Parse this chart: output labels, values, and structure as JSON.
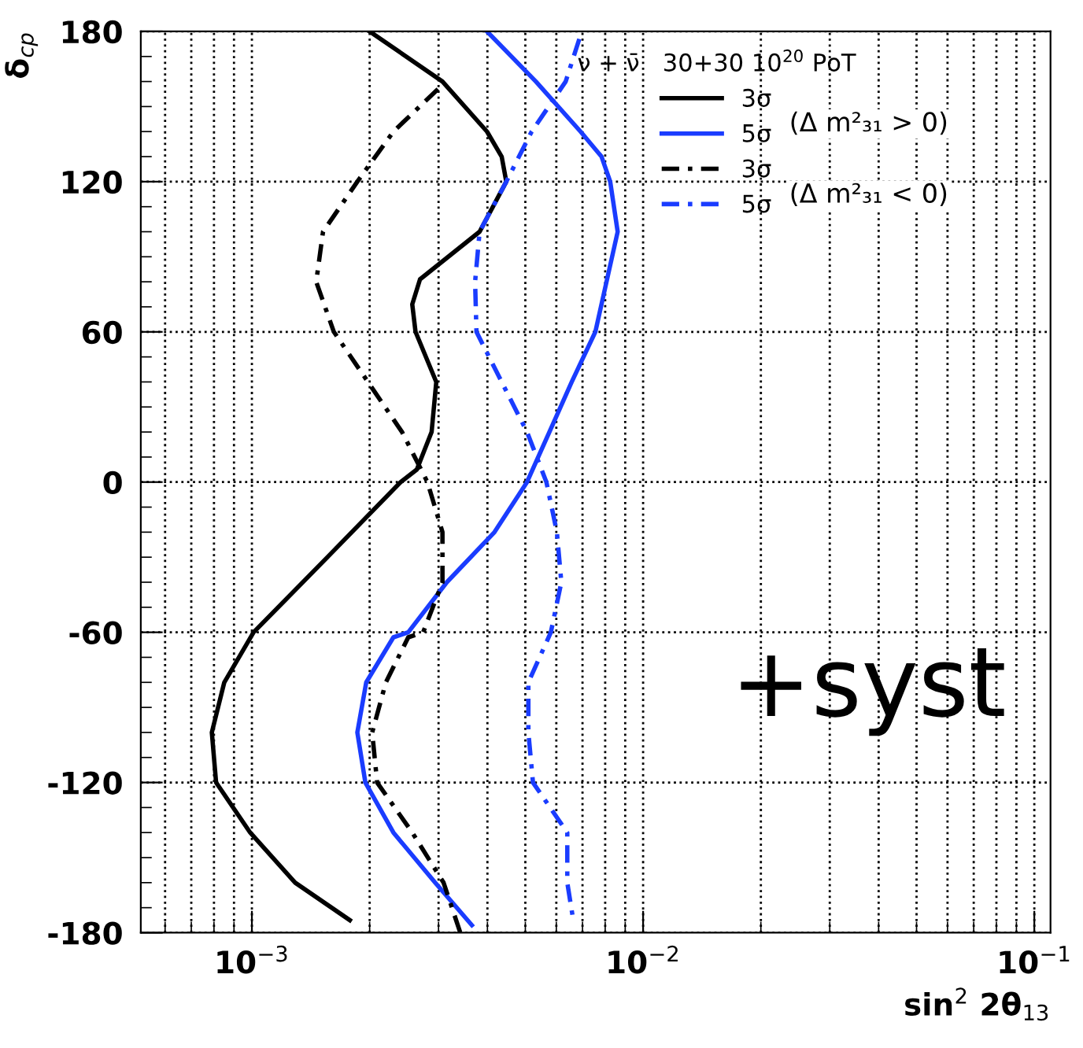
{
  "chart_data": {
    "type": "line",
    "xlabel": "sin$^{2}$ 2θ$_{13}$",
    "ylabel": "δ$_{cp}$",
    "legend_title": "ν + ν̄   30+30 10$^{20}$ PoT",
    "log": "x",
    "xlim": [
      0.00052,
      0.11
    ],
    "xticks": [
      {
        "value": 0.001,
        "label": "10$^{−3}$"
      },
      {
        "value": 0.01,
        "label": "10$^{−2}$"
      },
      {
        "value": 0.1,
        "label": "10$^{−1}$"
      }
    ],
    "ylim": [
      -180,
      180
    ],
    "yticks": [
      -180,
      -120,
      -60,
      0,
      60,
      120,
      180
    ],
    "grid": true,
    "legend": "top right",
    "annotations": [
      "(Δ m²₃₁ > 0)",
      "(Δ m²₃₁ < 0)",
      "+syst"
    ],
    "series": [
      {
        "name": "3σ",
        "color": "#000000",
        "line_style": "solid",
        "values": [
          180,
          160,
          140,
          130,
          120,
          100,
          81,
          71,
          60,
          40,
          20,
          5,
          0,
          -30,
          -60,
          -80,
          -100,
          -120,
          -140,
          -160,
          -175
        ],
        "x": [
          0.002,
          0.00307,
          0.00399,
          0.00435,
          0.00447,
          0.00382,
          0.00269,
          0.00257,
          0.00262,
          0.00296,
          0.00288,
          0.00264,
          0.0024,
          0.00156,
          0.00101,
          0.00085,
          0.00079,
          0.00081,
          0.00099,
          0.00129,
          0.00178
        ]
      },
      {
        "name": "5σ",
        "color": "#1a3cff",
        "line_style": "solid",
        "values": [
          180,
          160,
          140,
          130,
          120,
          100,
          60,
          40,
          20,
          0,
          -20,
          -40,
          -60,
          -62,
          -80,
          -100,
          -120,
          -140,
          -160,
          -177
        ],
        "x": [
          0.00399,
          0.00532,
          0.00692,
          0.00783,
          0.00824,
          0.00861,
          0.00755,
          0.00657,
          0.00576,
          0.00505,
          0.00417,
          0.00315,
          0.00251,
          0.0023,
          0.00196,
          0.00186,
          0.00195,
          0.0023,
          0.00294,
          0.00365
        ]
      },
      {
        "name": "3σ",
        "color": "#000000",
        "line_style": "dashed",
        "values": [
          157,
          140,
          120,
          100,
          80,
          60,
          40,
          20,
          0,
          -20,
          -40,
          -60,
          -62,
          -80,
          -100,
          -120,
          -140,
          -160,
          -180
        ],
        "x": [
          0.00299,
          0.0023,
          0.00186,
          0.00152,
          0.00146,
          0.00162,
          0.00198,
          0.00242,
          0.00281,
          0.00307,
          0.00307,
          0.00274,
          0.00251,
          0.0022,
          0.00203,
          0.00209,
          0.00257,
          0.00309,
          0.00341
        ]
      },
      {
        "name": "5σ",
        "color": "#1a3cff",
        "line_style": "dashed",
        "values": [
          177,
          160,
          140,
          120,
          100,
          80,
          60,
          40,
          20,
          0,
          -20,
          -40,
          -60,
          -80,
          -100,
          -120,
          -140,
          -160,
          -175
        ],
        "x": [
          0.00687,
          0.00634,
          0.00519,
          0.00447,
          0.00382,
          0.00372,
          0.00375,
          0.00435,
          0.00505,
          0.00566,
          0.00602,
          0.00618,
          0.00581,
          0.00509,
          0.00509,
          0.00523,
          0.0064,
          0.0064,
          0.00663
        ]
      }
    ]
  }
}
